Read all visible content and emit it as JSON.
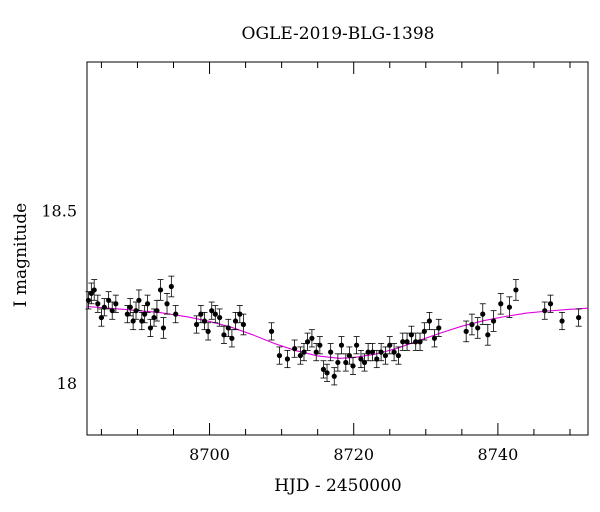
{
  "chart_data": {
    "type": "scatter",
    "title": "OGLE-2019-BLG-1398",
    "xlabel": "HJD - 2450000",
    "ylabel": "I magnitude",
    "xlim": [
      8683.0,
      8752.5
    ],
    "ylim": [
      18.93,
      17.85
    ],
    "y_inverted": true,
    "x_ticks": [
      8700,
      8720,
      8740
    ],
    "y_ticks": [
      18,
      18.5
    ],
    "point_color": "#000000",
    "model_color": "#e000e0",
    "series": [
      {
        "kind": "points",
        "x": [
          8683.2,
          8683.6,
          8684.0,
          8684.5,
          8685.0,
          8685.4,
          8686.0,
          8686.5,
          8687.0,
          8688.6,
          8689.0,
          8689.4,
          8689.8,
          8690.2,
          8690.6,
          8691.0,
          8691.4,
          8691.8,
          8692.3,
          8692.7,
          8693.2,
          8693.6,
          8694.1,
          8694.7,
          8695.3,
          8698.2,
          8698.8,
          8699.3,
          8699.8,
          8700.3,
          8700.8,
          8701.4,
          8702.0,
          8702.6,
          8703.1,
          8703.6,
          8704.2,
          8704.7,
          8708.6,
          8709.7,
          8710.8,
          8711.8,
          8712.6,
          8713.1,
          8713.6,
          8714.2,
          8714.8,
          8715.3,
          8715.8,
          8716.3,
          8716.8,
          8717.3,
          8717.8,
          8718.3,
          8718.9,
          8719.4,
          8719.9,
          8720.4,
          8721.0,
          8721.5,
          8722.0,
          8722.6,
          8723.2,
          8723.8,
          8724.4,
          8725.0,
          8725.6,
          8726.2,
          8726.8,
          8727.4,
          8728.0,
          8728.6,
          8729.2,
          8729.8,
          8730.5,
          8731.2,
          8731.8,
          8735.6,
          8736.4,
          8737.2,
          8737.9,
          8738.6,
          8739.4,
          8740.4,
          8741.6,
          8742.5,
          8746.5,
          8747.3,
          8748.9,
          8751.2
        ],
        "y": [
          18.24,
          18.26,
          18.27,
          18.23,
          18.19,
          18.22,
          18.24,
          18.21,
          18.23,
          18.2,
          18.22,
          18.18,
          18.21,
          18.24,
          18.18,
          18.2,
          18.23,
          18.16,
          18.19,
          18.21,
          18.27,
          18.16,
          18.23,
          18.28,
          18.2,
          18.17,
          18.2,
          18.18,
          18.15,
          18.21,
          18.2,
          18.19,
          18.14,
          18.16,
          18.13,
          18.18,
          18.2,
          18.17,
          18.15,
          18.08,
          18.07,
          18.1,
          18.08,
          18.09,
          18.12,
          18.13,
          18.09,
          18.11,
          18.04,
          18.03,
          18.09,
          18.02,
          18.06,
          18.11,
          18.06,
          18.08,
          18.05,
          18.11,
          18.07,
          18.06,
          18.09,
          18.09,
          18.07,
          18.09,
          18.08,
          18.11,
          18.09,
          18.08,
          18.12,
          18.12,
          18.14,
          18.12,
          18.12,
          18.15,
          18.18,
          18.13,
          18.16,
          18.15,
          18.17,
          18.16,
          18.2,
          18.14,
          18.18,
          18.23,
          18.22,
          18.27,
          18.21,
          18.23,
          18.18,
          18.19
        ],
        "err": [
          0.025,
          0.03,
          0.03,
          0.025,
          0.025,
          0.025,
          0.025,
          0.025,
          0.025,
          0.025,
          0.025,
          0.025,
          0.025,
          0.03,
          0.025,
          0.025,
          0.025,
          0.025,
          0.025,
          0.03,
          0.03,
          0.03,
          0.03,
          0.03,
          0.025,
          0.025,
          0.025,
          0.025,
          0.025,
          0.025,
          0.025,
          0.025,
          0.025,
          0.025,
          0.025,
          0.025,
          0.025,
          0.03,
          0.025,
          0.025,
          0.025,
          0.025,
          0.025,
          0.025,
          0.025,
          0.025,
          0.025,
          0.025,
          0.025,
          0.025,
          0.025,
          0.025,
          0.025,
          0.025,
          0.025,
          0.025,
          0.025,
          0.025,
          0.025,
          0.025,
          0.025,
          0.025,
          0.025,
          0.025,
          0.025,
          0.025,
          0.025,
          0.025,
          0.025,
          0.025,
          0.025,
          0.025,
          0.025,
          0.025,
          0.025,
          0.025,
          0.025,
          0.03,
          0.03,
          0.03,
          0.03,
          0.03,
          0.03,
          0.03,
          0.03,
          0.03,
          0.025,
          0.025,
          0.025,
          0.025
        ]
      },
      {
        "kind": "model",
        "x": [
          8683,
          8688,
          8693,
          8697,
          8700,
          8703,
          8706,
          8709,
          8712,
          8715,
          8718,
          8720,
          8723,
          8726,
          8729,
          8732,
          8735,
          8738,
          8741,
          8744,
          8747,
          8750,
          8752.5
        ],
        "y": [
          18.222,
          18.214,
          18.205,
          18.192,
          18.179,
          18.162,
          18.14,
          18.115,
          18.094,
          18.079,
          18.072,
          18.074,
          18.084,
          18.101,
          18.123,
          18.145,
          18.165,
          18.181,
          18.193,
          18.203,
          18.209,
          18.214,
          18.217
        ]
      }
    ]
  }
}
